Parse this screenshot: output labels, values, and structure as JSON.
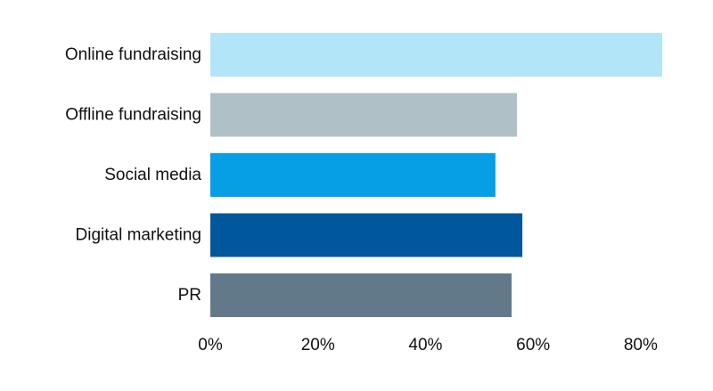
{
  "chart_data": {
    "type": "bar",
    "orientation": "horizontal",
    "categories": [
      "Online fundraising",
      "Offline fundraising",
      "Social media",
      "Digital marketing",
      "PR"
    ],
    "values": [
      84,
      57,
      53,
      58,
      56
    ],
    "unit": "%",
    "colors": [
      "#b3e5f8",
      "#b0c0c7",
      "#069fe6",
      "#00579b",
      "#62798a"
    ],
    "title": "",
    "xlabel": "",
    "ylabel": "",
    "xlim": [
      0,
      84
    ],
    "x_ticks": [
      0,
      20,
      40,
      60,
      80
    ],
    "x_tick_labels": [
      "0%",
      "20%",
      "40%",
      "60%",
      "80%"
    ],
    "grid": false,
    "legend": "none"
  }
}
